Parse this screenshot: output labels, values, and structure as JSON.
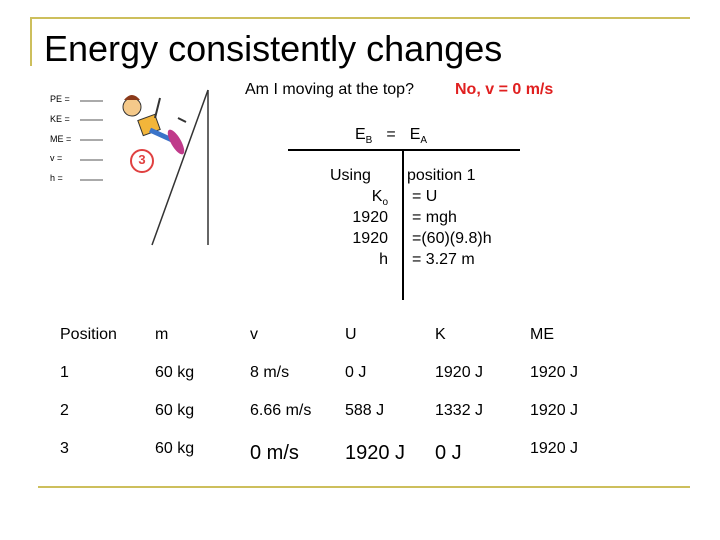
{
  "title": "Energy consistently changes",
  "question": "Am I moving at the top?",
  "answer": "No, v = 0 m/s",
  "figure": {
    "labels": [
      "PE =",
      "KE =",
      "ME =",
      "v =",
      "h ="
    ],
    "position": "3"
  },
  "equation": {
    "left": "E",
    "left_sub": "B",
    "op": "=",
    "right": "E",
    "right_sub": "A"
  },
  "work": {
    "rows": [
      [
        "Using",
        "position 1"
      ],
      [
        "K",
        "= U"
      ],
      [
        "1920",
        "= mgh"
      ],
      [
        "1920",
        "=(60)(9.8)h"
      ],
      [
        "h",
        "= 3.27 m"
      ]
    ],
    "k_sub": "o"
  },
  "table": {
    "header": [
      "Position",
      "m",
      "v",
      "U",
      "K",
      "ME"
    ],
    "rows": [
      [
        "1",
        "60 kg",
        "8 m/s",
        "0 J",
        "1920 J",
        "1920 J"
      ],
      [
        "2",
        "60 kg",
        "6.66 m/s",
        "588 J",
        "1332 J",
        "1920 J"
      ],
      [
        "3",
        "60 kg",
        "0 m/s",
        "1920 J",
        "0 J",
        "1920 J"
      ]
    ]
  }
}
